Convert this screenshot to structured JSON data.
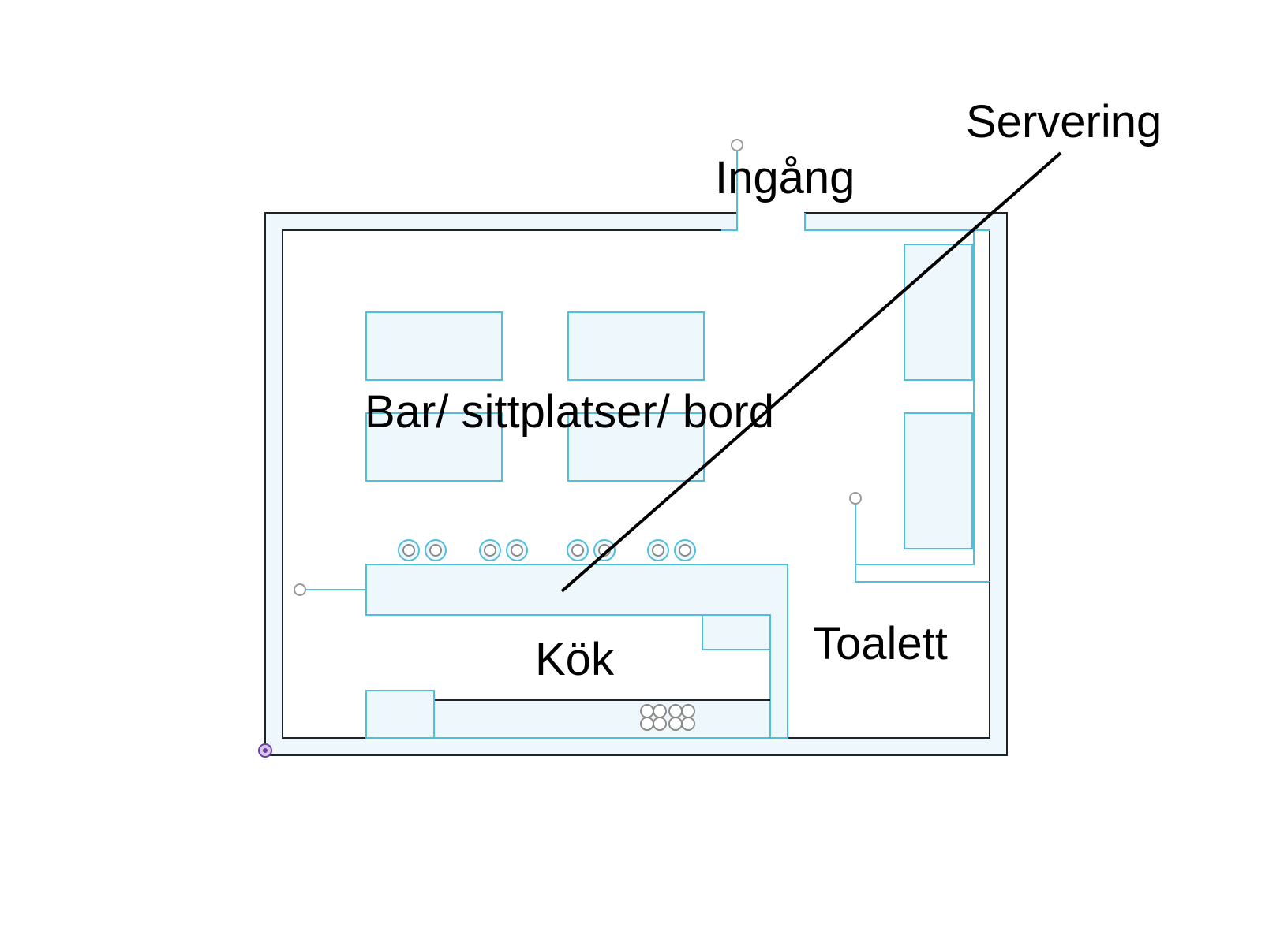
{
  "labels": {
    "entrance": "Ingång",
    "serving": "Servering",
    "bar_seating": "Bar/ sittplatser/ bord",
    "kitchen": "Kök",
    "toilet": "Toalett"
  },
  "colors": {
    "wall_outline": "#1f2328",
    "fixture_outline": "#4fc0dc",
    "fixture_fill": "#eef8fc",
    "anchor_point": "#6b3fa0"
  }
}
